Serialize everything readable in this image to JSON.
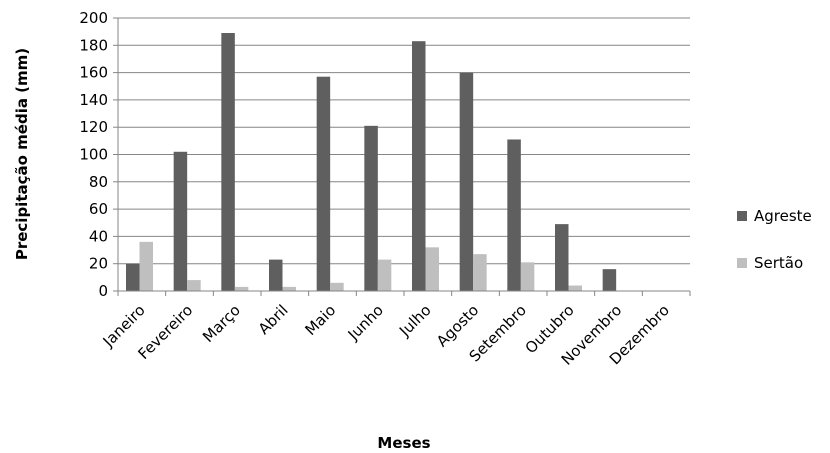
{
  "chart_data": {
    "type": "bar",
    "categories": [
      "Janeiro",
      "Fevereiro",
      "Março",
      "Abril",
      "Maio",
      "Junho",
      "Julho",
      "Agosto",
      "Setembro",
      "Outubro",
      "Novembro",
      "Dezembro"
    ],
    "series": [
      {
        "name": "Agreste",
        "color": "#5f5f5f",
        "values": [
          20,
          102,
          189,
          23,
          157,
          121,
          183,
          160,
          111,
          49,
          16,
          0
        ]
      },
      {
        "name": "Sertão",
        "color": "#bfbfbf",
        "values": [
          36,
          8,
          3,
          3,
          6,
          23,
          32,
          27,
          21,
          4,
          0,
          0
        ]
      }
    ],
    "xlabel": "Meses",
    "ylabel": "Precipitação média (mm)",
    "ylim": [
      0,
      200
    ],
    "yticks": [
      0,
      20,
      40,
      60,
      80,
      100,
      120,
      140,
      160,
      180,
      200
    ],
    "grid": true,
    "legend_position": "right"
  }
}
